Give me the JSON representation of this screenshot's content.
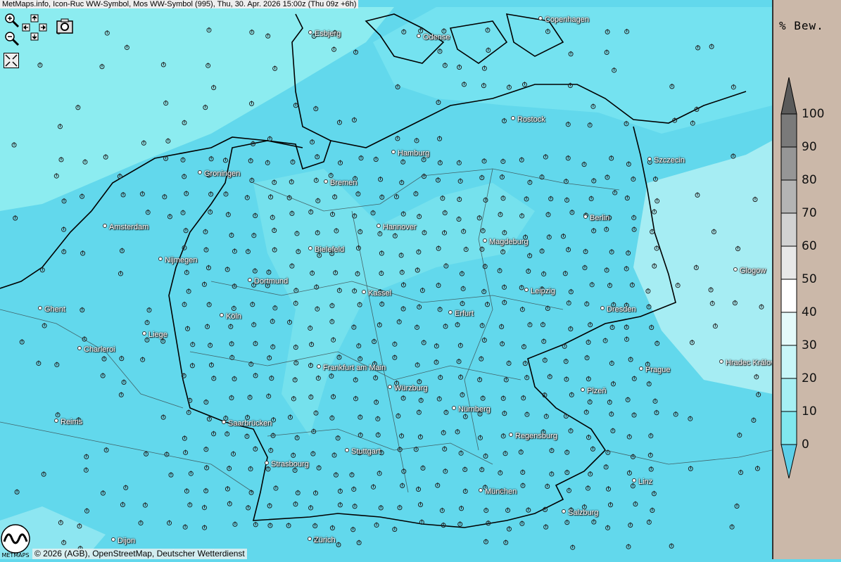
{
  "title": "MetMaps.info, Icon-Ruc WW-Symbol, Mos WW-Symbol (995), Thu, 30. Apr. 2026 15:00z (Thu 09z +6h)",
  "controls": {
    "zoom_in": "zoom-in-icon",
    "zoom_out": "zoom-out-icon",
    "pan": "pan-arrows-icon",
    "screenshot": "camera-icon",
    "fullscreen": "fullscreen-icon"
  },
  "cities": [
    "Esbjerg",
    "Odense",
    "Copenhagen",
    "Rostock",
    "Hamburg",
    "Szczecin",
    "Groningen",
    "Bremen",
    "Amsterdam",
    "Hannover",
    "Berlin",
    "Bielefeld",
    "Magdeburg",
    "Nijmegen",
    "Dortmund",
    "Glogow",
    "Kassel",
    "Leipzig",
    "Ghent",
    "Köln",
    "Erfurt",
    "Dresden",
    "Liege",
    "Charleroi",
    "Frankfurt am Main",
    "Hradec Králové",
    "Prague",
    "Würzburg",
    "Plzeň",
    "Nürnberg",
    "Reims",
    "Saarbrücken",
    "Regensburg",
    "Stuttgart",
    "Strasbourg",
    "Linz",
    "München",
    "Salzburg",
    "Dijon",
    "Zürich"
  ],
  "legend": {
    "title": "% Bew.",
    "labels": [
      "100",
      "90",
      "80",
      "70",
      "60",
      "50",
      "40",
      "30",
      "20",
      "10",
      "0"
    ],
    "colors": [
      "#7a7a7a",
      "#969696",
      "#b4b4b4",
      "#d2d2d2",
      "#e8e8e8",
      "#ffffff",
      "#e4fafa",
      "#c8f6f8",
      "#a6f0f4",
      "#80e8ee"
    ],
    "over_color": "#5a5a5a",
    "under_color": "#5ccfe8"
  },
  "footer": "© 2026 (AGB), OpenStreetMap, Deutscher Wetterdienst",
  "logo_text": "METMAPS",
  "colors": {
    "land": "#62d8ec",
    "sea": "#8cecf0",
    "clear": "#e6fafa",
    "panel": "#cbb8a9"
  }
}
